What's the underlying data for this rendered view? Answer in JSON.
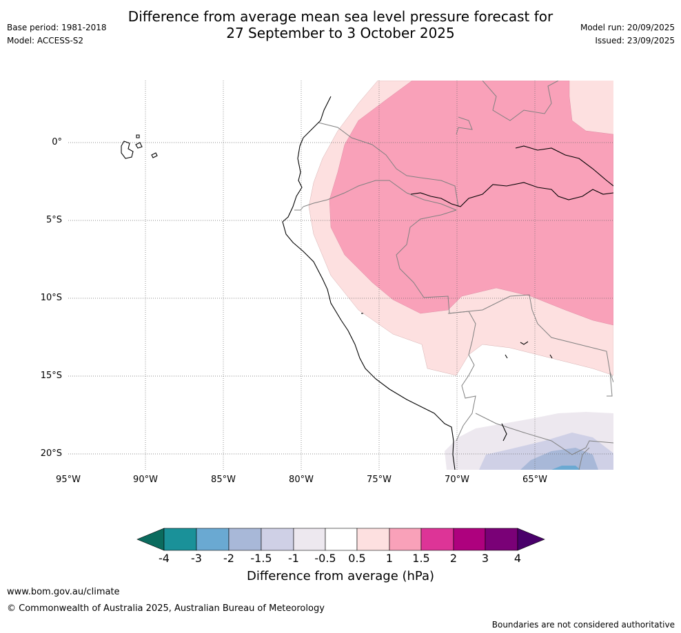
{
  "header": {
    "title_line1": "Difference from average mean sea level pressure forecast for",
    "title_line2": "27 September to 3 October 2025",
    "base_period": "Base period: 1981-2018",
    "model": "Model: ACCESS-S2",
    "model_run": "Model run: 20/09/2025",
    "issued": "Issued: 23/09/2025"
  },
  "map": {
    "lat_labels": [
      "0°",
      "5°S",
      "10°S",
      "15°S",
      "20°S"
    ],
    "lon_labels": [
      "95°W",
      "90°W",
      "85°W",
      "80°W",
      "75°W",
      "70°W",
      "65°W"
    ]
  },
  "colorbar": {
    "ticks": [
      "-4",
      "-3",
      "-2",
      "-1.5",
      "-1",
      "-0.5",
      "0.5",
      "1",
      "1.5",
      "2",
      "3",
      "4"
    ],
    "label": "Difference from average (hPa)",
    "colors": {
      "below_-4": "#0b6b5e",
      "-4_-3": "#1a9199",
      "-3_-2": "#6aa9d2",
      "-2_-1.5": "#a8b8d8",
      "-1.5_-1": "#cfd0e6",
      "-1_-0.5": "#ede8ef",
      "-0.5_0.5": "#ffffff",
      "0.5_1": "#fde0e0",
      "1_1.5": "#f9a1b9",
      "1.5_2": "#dd3497",
      "2_3": "#ae017e",
      "3_4": "#7a0177",
      "above_4": "#49006a"
    }
  },
  "footer": {
    "website": "www.bom.gov.au/climate",
    "copyright": "© Commonwealth of Australia 2025, Australian Bureau of Meteorology",
    "disclaimer": "Boundaries are not considered authoritative"
  }
}
